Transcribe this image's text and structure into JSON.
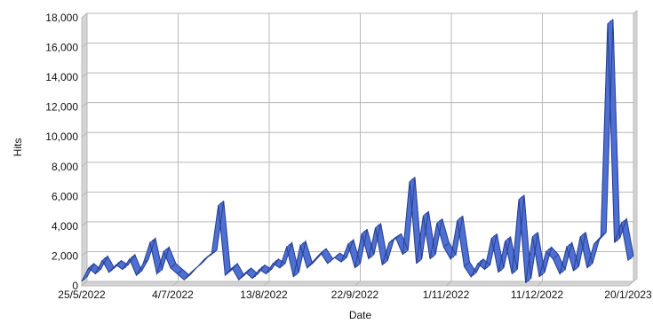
{
  "chart_data": {
    "type": "area",
    "title": "",
    "xlabel": "Date",
    "ylabel": "Hits",
    "ylim": [
      0,
      18000
    ],
    "y_ticks": [
      "0",
      "2,000",
      "4,000",
      "6,000",
      "8,000",
      "10,000",
      "12,000",
      "14,000",
      "16,000",
      "18,000"
    ],
    "x_ticks": [
      "25/5/2022",
      "4/7/2022",
      "13/8/2022",
      "22/9/2022",
      "1/11/2022",
      "11/12/2022",
      "20/1/2023"
    ],
    "x_tick_dates": [
      "2022-05-25",
      "2022-07-04",
      "2022-08-13",
      "2022-09-22",
      "2022-11-01",
      "2022-12-11",
      "2023-01-20"
    ],
    "xlim": [
      "2022-05-25",
      "2023-01-20"
    ],
    "grid": true,
    "style": "3d-ribbon",
    "colors": {
      "fill": "#4e6fd3",
      "edge": "#27408f",
      "wall": "#d4d4d4",
      "grid": "#b8b8b8"
    },
    "series": [
      {
        "x": [
          "2022-05-25",
          "2022-05-28",
          "2022-05-31",
          "2022-06-03",
          "2022-06-06",
          "2022-06-09",
          "2022-06-12",
          "2022-06-15",
          "2022-06-18",
          "2022-06-21",
          "2022-06-24",
          "2022-06-27",
          "2022-06-30",
          "2022-07-03",
          "2022-07-06",
          "2022-07-09",
          "2022-07-12",
          "2022-07-15",
          "2022-07-18",
          "2022-07-21",
          "2022-07-24",
          "2022-07-27",
          "2022-07-30",
          "2022-08-02",
          "2022-08-05",
          "2022-08-08",
          "2022-08-11",
          "2022-08-14",
          "2022-08-17",
          "2022-08-20",
          "2022-08-23",
          "2022-08-26",
          "2022-08-29",
          "2022-09-01",
          "2022-09-04",
          "2022-09-07",
          "2022-09-10",
          "2022-09-13",
          "2022-09-16",
          "2022-09-19",
          "2022-09-22",
          "2022-09-25",
          "2022-09-28",
          "2022-10-01",
          "2022-10-04",
          "2022-10-07",
          "2022-10-10",
          "2022-10-13",
          "2022-10-16",
          "2022-10-19",
          "2022-10-22",
          "2022-10-25",
          "2022-10-28",
          "2022-10-31",
          "2022-11-03",
          "2022-11-06",
          "2022-11-09",
          "2022-11-12",
          "2022-11-15",
          "2022-11-18",
          "2022-11-21",
          "2022-11-24",
          "2022-11-27",
          "2022-11-30",
          "2022-12-03",
          "2022-12-06",
          "2022-12-09",
          "2022-12-12",
          "2022-12-15",
          "2022-12-18",
          "2022-12-21",
          "2022-12-24",
          "2022-12-27",
          "2022-12-30",
          "2023-01-02",
          "2023-01-05",
          "2023-01-08",
          "2023-01-11",
          "2023-01-14",
          "2023-01-17",
          "2023-01-20"
        ],
        "values": [
          300,
          1200,
          800,
          1700,
          900,
          1400,
          1100,
          1800,
          700,
          1500,
          2900,
          800,
          2300,
          1200,
          800,
          400,
          900,
          1300,
          1800,
          2100,
          5400,
          700,
          1200,
          400,
          900,
          500,
          1100,
          800,
          1500,
          1200,
          2600,
          600,
          2700,
          1200,
          1700,
          2200,
          1500,
          1900,
          1600,
          2800,
          1200,
          3500,
          1800,
          3900,
          1400,
          2900,
          3200,
          2100,
          7000,
          1500,
          4700,
          1800,
          4200,
          2600,
          1800,
          4400,
          1300,
          600,
          1500,
          1100,
          3200,
          900,
          3000,
          800,
          5800,
          200,
          3300,
          600,
          2300,
          1800,
          800,
          2600,
          1000,
          3300,
          1200,
          2800,
          3300,
          17600,
          2900,
          4200,
          1700
        ]
      }
    ]
  }
}
